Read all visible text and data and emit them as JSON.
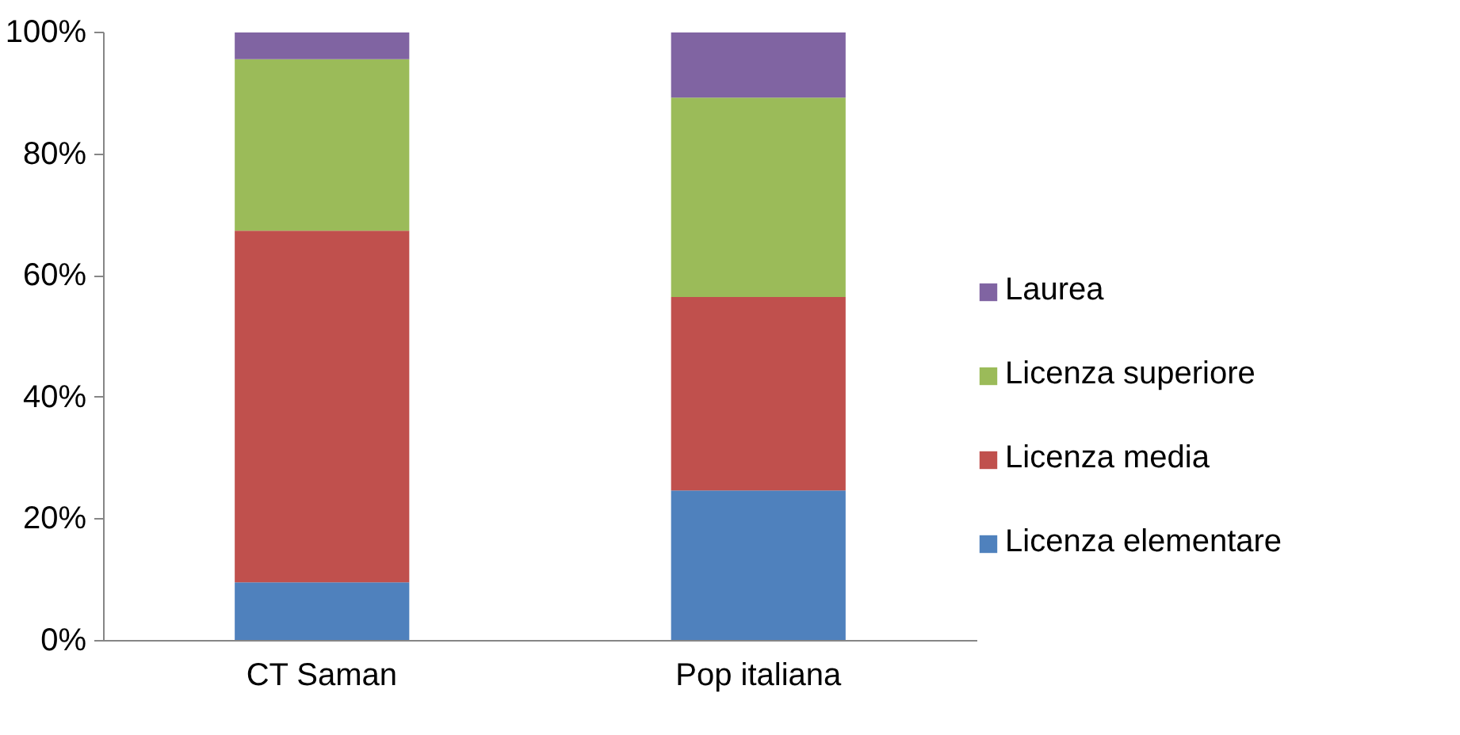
{
  "chart_data": {
    "type": "bar",
    "stacked": true,
    "categories": [
      "CT Saman",
      "Pop italiana"
    ],
    "series": [
      {
        "name": "Licenza elementare",
        "color": "#4f81bd",
        "values": [
          9.6,
          24.7
        ]
      },
      {
        "name": "Licenza media",
        "color": "#c0504d",
        "values": [
          57.8,
          31.8
        ]
      },
      {
        "name": "Licenza superiore",
        "color": "#9bbb59",
        "values": [
          28.2,
          32.8
        ]
      },
      {
        "name": "Laurea",
        "color": "#8064a2",
        "values": [
          4.4,
          10.7
        ]
      }
    ],
    "ylim": [
      0,
      100
    ],
    "yticks": [
      {
        "value": 0,
        "label": "0%"
      },
      {
        "value": 20,
        "label": "20%"
      },
      {
        "value": 40,
        "label": "40%"
      },
      {
        "value": 60,
        "label": "60%"
      },
      {
        "value": 80,
        "label": "80%"
      },
      {
        "value": 100,
        "label": "100%"
      }
    ],
    "grid": false,
    "legend": "right"
  }
}
